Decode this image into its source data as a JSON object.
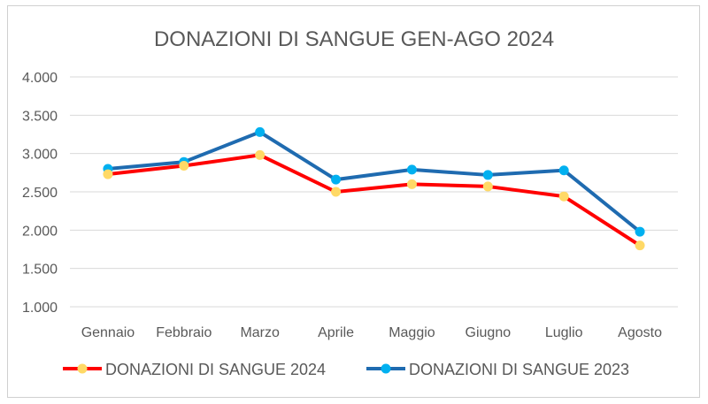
{
  "chart_data": {
    "type": "line",
    "title": "DONAZIONI DI SANGUE GEN-AGO 2024",
    "categories": [
      "Gennaio",
      "Febbraio",
      "Marzo",
      "Aprile",
      "Maggio",
      "Giugno",
      "Luglio",
      "Agosto"
    ],
    "ylim": [
      1000,
      4000
    ],
    "yticks": [
      1000,
      1500,
      2000,
      2500,
      3000,
      3500,
      4000
    ],
    "ytick_labels": [
      "1.000",
      "1.500",
      "2.000",
      "2.500",
      "3.000",
      "3.500",
      "4.000"
    ],
    "grid": true,
    "legend_position": "bottom",
    "series": [
      {
        "name": "DONAZIONI DI SANGUE 2024",
        "values": [
          2730,
          2840,
          2980,
          2500,
          2600,
          2570,
          2440,
          1800
        ],
        "line_color": "#ff0000",
        "marker_color": "#ffd966"
      },
      {
        "name": "DONAZIONI DI SANGUE 2023",
        "values": [
          2800,
          2890,
          3280,
          2660,
          2790,
          2720,
          2780,
          1980
        ],
        "line_color": "#1f6bb0",
        "marker_color": "#00b0f0"
      }
    ]
  }
}
